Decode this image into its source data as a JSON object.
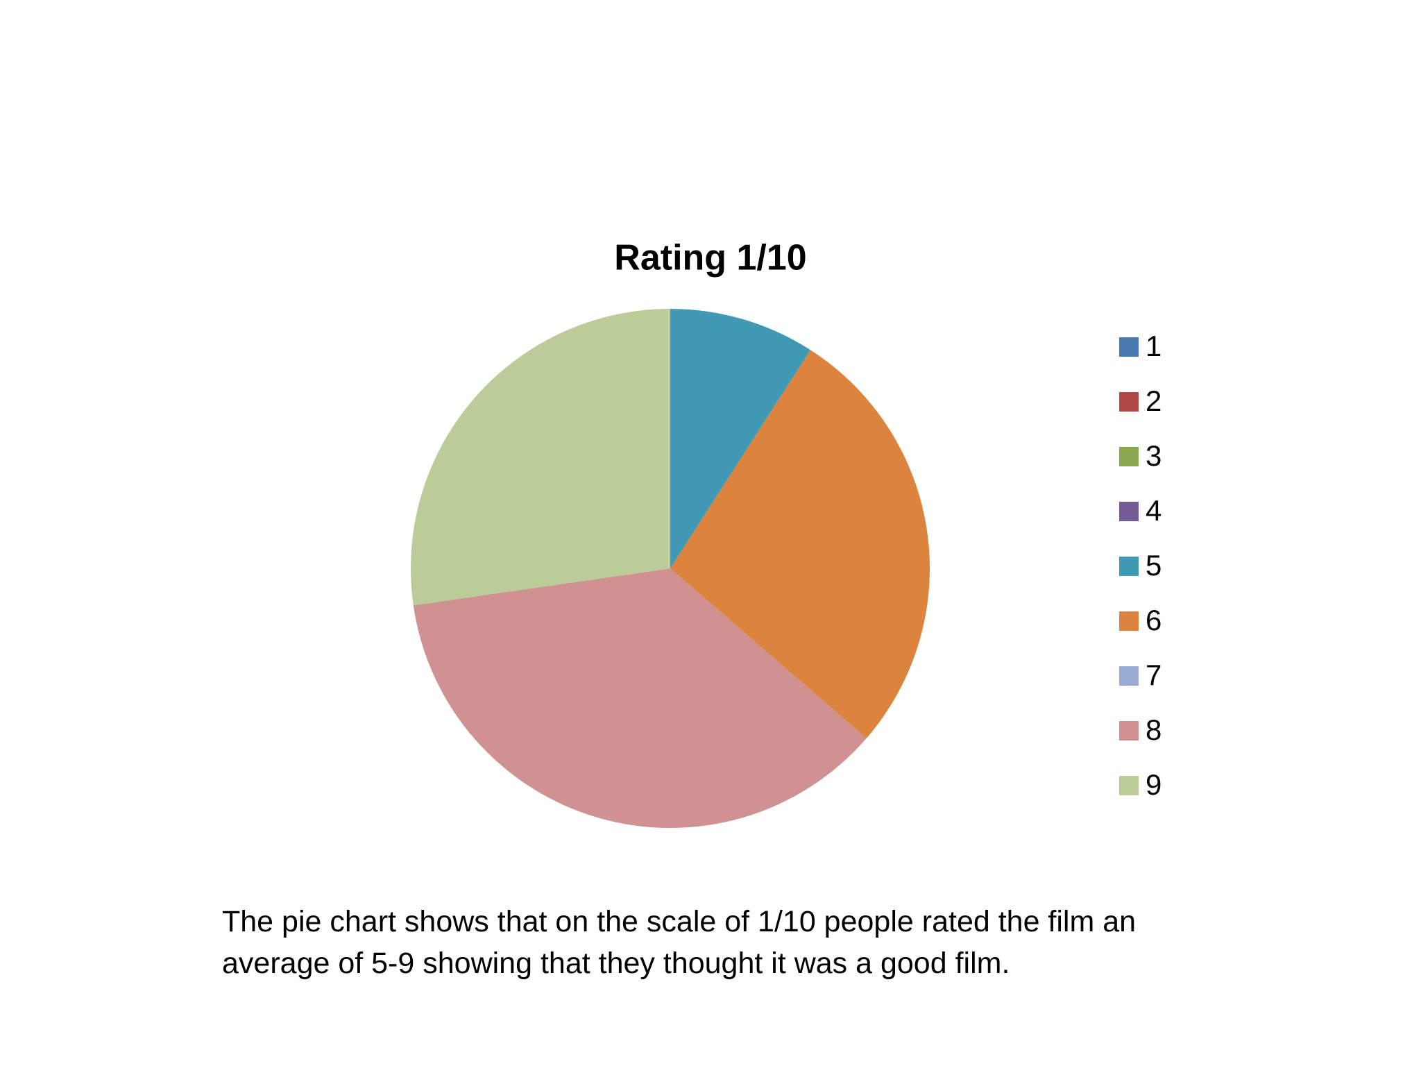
{
  "chart_data": {
    "type": "pie",
    "title": "Rating 1/10",
    "categories": [
      "1",
      "2",
      "3",
      "4",
      "5",
      "6",
      "7",
      "8",
      "9"
    ],
    "values": [
      0,
      0,
      0,
      0,
      1,
      3,
      0,
      4,
      3
    ],
    "colors": [
      "#4a7ab0",
      "#b14848",
      "#8aa84f",
      "#735b96",
      "#4299b3",
      "#dc843e",
      "#98acd6",
      "#d09191",
      "#bccc99"
    ],
    "legend": "right"
  },
  "caption": "The pie chart shows that on the scale of 1/10 people rated the film an average of 5-9 showing that they thought it was a good film."
}
